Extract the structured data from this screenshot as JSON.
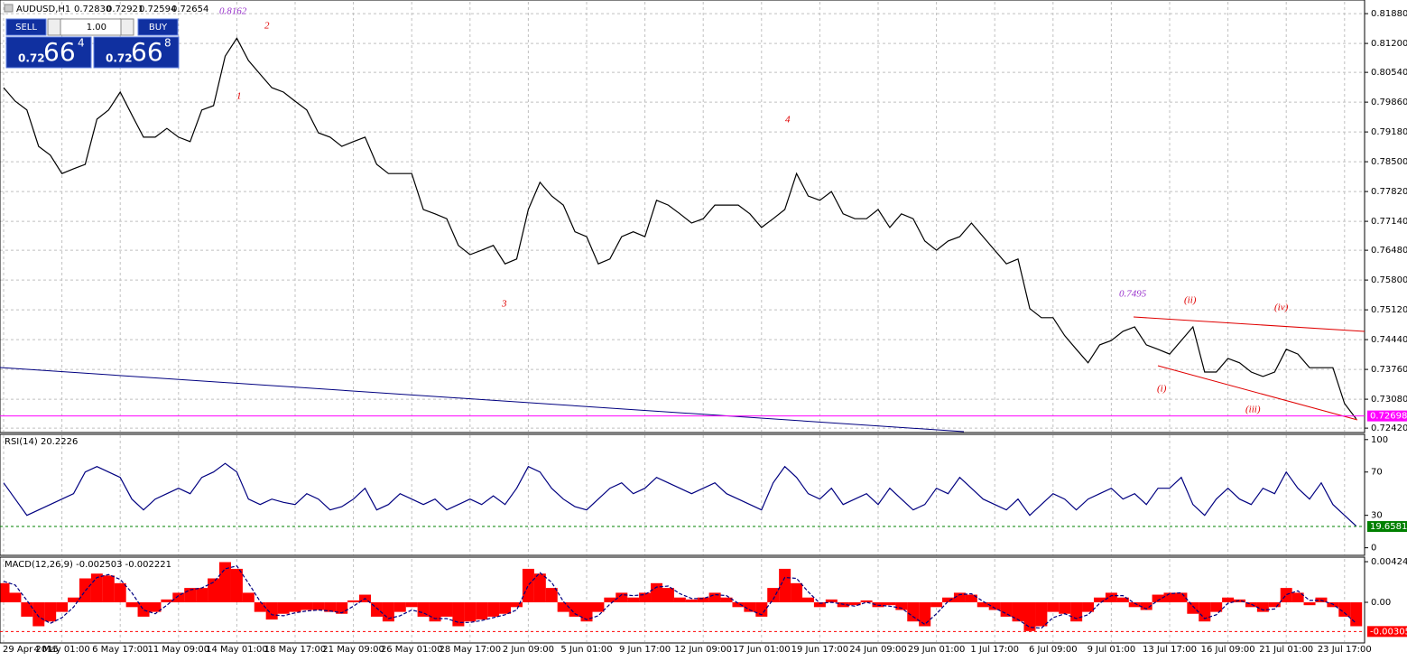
{
  "trade_panel": {
    "sell": "SELL",
    "buy": "BUY",
    "lot": "1.00",
    "bid": {
      "prefix": "0.72",
      "big": "66",
      "sup": "4"
    },
    "ask": {
      "prefix": "0.72",
      "big": "66",
      "sup": "8"
    }
  },
  "chart_data": [
    {
      "type": "line",
      "title": "AUDUSD,H1",
      "ohlc": [
        "0.72830",
        "0.72921",
        "0.72594",
        "0.72654"
      ],
      "color": "#000000",
      "grid": true,
      "values": [
        0.8019,
        0.7988,
        0.7968,
        0.7885,
        0.7865,
        0.7823,
        0.7834,
        0.7844,
        0.7947,
        0.7968,
        0.8009,
        0.7957,
        0.7906,
        0.7906,
        0.7926,
        0.7906,
        0.7896,
        0.7968,
        0.7978,
        0.8091,
        0.8132,
        0.8081,
        0.805,
        0.8019,
        0.8009,
        0.7988,
        0.7968,
        0.7916,
        0.7906,
        0.7885,
        0.7896,
        0.7906,
        0.7844,
        0.7823,
        0.7823,
        0.7823,
        0.7741,
        0.7731,
        0.772,
        0.7659,
        0.7638,
        0.7648,
        0.7659,
        0.7617,
        0.7628,
        0.7741,
        0.7803,
        0.7772,
        0.7751,
        0.769,
        0.7679,
        0.7617,
        0.7628,
        0.7679,
        0.769,
        0.7679,
        0.7762,
        0.7751,
        0.7731,
        0.771,
        0.772,
        0.7751,
        0.7751,
        0.7751,
        0.7731,
        0.77,
        0.772,
        0.7741,
        0.7823,
        0.7772,
        0.7762,
        0.7782,
        0.7731,
        0.772,
        0.772,
        0.7741,
        0.77,
        0.7731,
        0.772,
        0.7669,
        0.7648,
        0.7669,
        0.7679,
        0.771,
        0.7679,
        0.7648,
        0.7617,
        0.7628,
        0.7515,
        0.7494,
        0.7494,
        0.7453,
        0.7422,
        0.7391,
        0.7432,
        0.7442,
        0.7463,
        0.7473,
        0.7432,
        0.7422,
        0.7411,
        0.7442,
        0.7473,
        0.737,
        0.737,
        0.7401,
        0.7391,
        0.737,
        0.736,
        0.737,
        0.7422,
        0.7411,
        0.738,
        0.738,
        0.738,
        0.7298,
        0.7263
      ],
      "ylim": [
        0.7234,
        0.8215
      ],
      "yticks": [
        {
          "value": 0.8188,
          "label": "0.81880"
        },
        {
          "value": 0.812,
          "label": "0.81200"
        },
        {
          "value": 0.8054,
          "label": "0.80540"
        },
        {
          "value": 0.7986,
          "label": "0.79860"
        },
        {
          "value": 0.7918,
          "label": "0.79180"
        },
        {
          "value": 0.785,
          "label": "0.78500"
        },
        {
          "value": 0.7782,
          "label": "0.77820"
        },
        {
          "value": 0.7714,
          "label": "0.77140"
        },
        {
          "value": 0.7648,
          "label": "0.76480"
        },
        {
          "value": 0.758,
          "label": "0.75800"
        },
        {
          "value": 0.7512,
          "label": "0.75120"
        },
        {
          "value": 0.7444,
          "label": "0.74440"
        },
        {
          "value": 0.7376,
          "label": "0.73760"
        },
        {
          "value": 0.7308,
          "label": "0.73080"
        },
        {
          "value": 0.7242,
          "label": "0.72420"
        }
      ],
      "last_value": 0.72698,
      "last_color": "#ff00ff",
      "annotations": [
        {
          "text": "0.8162"
        },
        {
          "text": "2"
        },
        {
          "text": "1"
        },
        {
          "text": "3"
        },
        {
          "text": "4"
        },
        {
          "text": "0.7495"
        },
        {
          "text": "(ii)"
        },
        {
          "text": "(iv)"
        },
        {
          "text": "(i)"
        },
        {
          "text": "(iii)"
        }
      ]
    },
    {
      "type": "line",
      "title": "RSI(14) 20.2226",
      "color": "#000080",
      "values": [
        60,
        45,
        30,
        35,
        40,
        45,
        50,
        70,
        75,
        70,
        65,
        45,
        35,
        45,
        50,
        55,
        50,
        65,
        70,
        78,
        70,
        45,
        40,
        45,
        42,
        40,
        50,
        45,
        35,
        38,
        45,
        55,
        35,
        40,
        50,
        45,
        40,
        45,
        35,
        40,
        45,
        40,
        48,
        40,
        55,
        75,
        70,
        55,
        45,
        38,
        35,
        45,
        55,
        60,
        50,
        55,
        65,
        60,
        55,
        50,
        55,
        60,
        50,
        45,
        40,
        35,
        60,
        75,
        65,
        50,
        45,
        55,
        40,
        45,
        50,
        40,
        55,
        45,
        35,
        40,
        55,
        50,
        65,
        55,
        45,
        40,
        35,
        45,
        30,
        40,
        50,
        45,
        35,
        45,
        50,
        55,
        45,
        50,
        40,
        55,
        55,
        65,
        40,
        30,
        45,
        55,
        45,
        40,
        55,
        50,
        70,
        55,
        45,
        60,
        40,
        30,
        20
      ],
      "ylim": [
        -7,
        104
      ],
      "yticks": [
        100,
        70,
        30,
        0
      ],
      "last_value": 19.6581,
      "last_color": "#008000"
    },
    {
      "type": "macd",
      "title": "MACD(12,26,9) -0.002503 -0.002221",
      "categories": [
        "29 Apr 2015",
        null,
        null,
        null,
        null,
        "4 May 01:00",
        null,
        null,
        null,
        null,
        "6 May 17:00",
        null,
        null,
        null,
        null,
        "11 May 09:00",
        null,
        null,
        null,
        null,
        "14 May 01:00",
        null,
        null,
        null,
        null,
        "18 May 17:00",
        null,
        null,
        null,
        null,
        "21 May 09:00",
        null,
        null,
        null,
        null,
        "26 May 01:00",
        null,
        null,
        null,
        null,
        "28 May 17:00",
        null,
        null,
        null,
        null,
        "2 Jun 09:00",
        null,
        null,
        null,
        null,
        "5 Jun 01:00",
        null,
        null,
        null,
        null,
        "9 Jun 17:00",
        null,
        null,
        null,
        null,
        "12 Jun 09:00",
        null,
        null,
        null,
        null,
        "17 Jun 01:00",
        null,
        null,
        null,
        null,
        "19 Jun 17:00",
        null,
        null,
        null,
        null,
        "24 Jun 09:00",
        null,
        null,
        null,
        null,
        "29 Jun 01:00",
        null,
        null,
        null,
        null,
        "1 Jul 17:00",
        null,
        null,
        null,
        null,
        "6 Jul 09:00",
        null,
        null,
        null,
        null,
        "9 Jul 01:00",
        null,
        null,
        null,
        null,
        "13 Jul 17:00",
        null,
        null,
        null,
        null,
        "16 Jul 09:00",
        null,
        null,
        null,
        null,
        "21 Jul 01:00",
        null,
        null,
        null,
        null,
        "23 Jul 17:00",
        null
      ],
      "series": [
        {
          "color": "#ff0000",
          "values": [
            0.002,
            0.001,
            -0.0015,
            -0.0025,
            -0.002,
            -0.001,
            0.0005,
            0.0025,
            0.003,
            0.0028,
            0.002,
            -0.0005,
            -0.0015,
            -0.001,
            0.0003,
            0.001,
            0.0015,
            0.0015,
            0.0025,
            0.0042,
            0.0035,
            0.001,
            -0.001,
            -0.0018,
            -0.0012,
            -0.001,
            -0.0008,
            -0.0008,
            -0.001,
            -0.0012,
            0.0002,
            0.0008,
            -0.0015,
            -0.002,
            -0.001,
            -0.0005,
            -0.0015,
            -0.002,
            -0.0015,
            -0.0025,
            -0.002,
            -0.0018,
            -0.0015,
            -0.0012,
            -0.0005,
            0.0035,
            0.003,
            0.0015,
            -0.001,
            -0.0015,
            -0.002,
            -0.001,
            0.0005,
            0.001,
            0.0005,
            0.001,
            0.002,
            0.0015,
            0.0005,
            0.0003,
            0.0005,
            0.001,
            0.0005,
            -0.0005,
            -0.001,
            -0.0015,
            0.0015,
            0.0035,
            0.002,
            0.0005,
            -0.0005,
            0.0003,
            -0.0005,
            -0.0003,
            0.0002,
            -0.0005,
            -0.0003,
            -0.0008,
            -0.002,
            -0.0025,
            -0.0005,
            0.0005,
            0.001,
            0.0008,
            -0.0005,
            -0.0008,
            -0.0015,
            -0.002,
            -0.003,
            -0.0025,
            -0.001,
            -0.0012,
            -0.002,
            -0.001,
            0.0005,
            0.001,
            0.0005,
            -0.0005,
            -0.0008,
            0.0008,
            0.001,
            0.001,
            -0.0012,
            -0.002,
            -0.001,
            0.0005,
            0.0003,
            -0.0005,
            -0.001,
            -0.0005,
            0.0015,
            0.001,
            -0.0003,
            0.0005,
            -0.0005,
            -0.0015,
            -0.0025
          ]
        },
        {
          "color": "#000080",
          "values": [
            0.0022,
            0.0018,
            0.0002,
            -0.0015,
            -0.0022,
            -0.0016,
            -0.0005,
            0.0012,
            0.0026,
            0.0029,
            0.0024,
            0.001,
            -0.0008,
            -0.0012,
            -0.0003,
            0.0007,
            0.0013,
            0.0015,
            0.0021,
            0.0035,
            0.0038,
            0.002,
            0.0001,
            -0.0013,
            -0.0014,
            -0.0011,
            -0.0009,
            -0.0008,
            -0.0009,
            -0.0011,
            -0.0004,
            0.0004,
            -0.0006,
            -0.0017,
            -0.0014,
            -0.0008,
            -0.0011,
            -0.0017,
            -0.0017,
            -0.0021,
            -0.0021,
            -0.0019,
            -0.0016,
            -0.0013,
            -0.0008,
            0.0018,
            0.0031,
            0.0021,
            0.0001,
            -0.0012,
            -0.0018,
            -0.0014,
            -0.0002,
            0.0008,
            0.0007,
            0.0008,
            0.0016,
            0.0017,
            0.0009,
            0.0004,
            0.0004,
            0.0008,
            0.0007,
            -0.0001,
            -0.0008,
            -0.0013,
            0.0003,
            0.0026,
            0.0025,
            0.0011,
            -0.0001,
            0,
            -0.0002,
            -0.0004,
            0,
            -0.0003,
            -0.0004,
            -0.0006,
            -0.0015,
            -0.0023,
            -0.0012,
            0.0001,
            0.0008,
            0.0009,
            0.0001,
            -0.0006,
            -0.0012,
            -0.0018,
            -0.0026,
            -0.0027,
            -0.0016,
            -0.0012,
            -0.0017,
            -0.0013,
            -0.0001,
            0.0007,
            0.0007,
            -0.0001,
            -0.0007,
            0.0002,
            0.0009,
            0.001,
            -0.0004,
            -0.0017,
            -0.0013,
            -0.0001,
            0.0002,
            -0.0002,
            -0.0008,
            -0.0007,
            0.0008,
            0.0012,
            0.0002,
            0.0002,
            -0.0002,
            -0.0011,
            -0.0022
          ],
          "dash": true
        }
      ],
      "ylim": [
        -0.00415,
        0.00453
      ],
      "yticks": [
        0.004245,
        {
          "value": 0,
          "label": "0.00"
        }
      ],
      "last_value": -0.00305,
      "last_color": "#ff0000"
    }
  ]
}
